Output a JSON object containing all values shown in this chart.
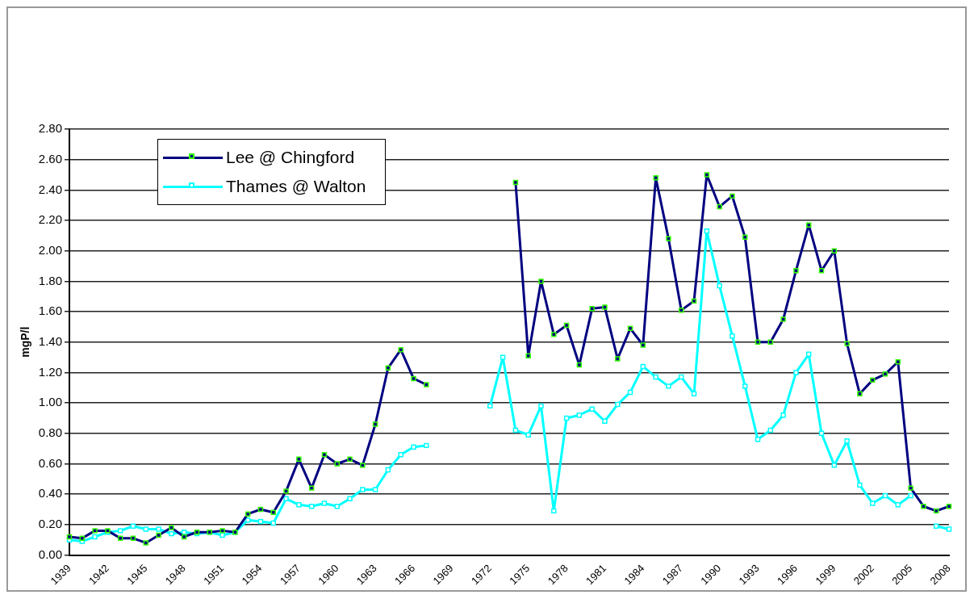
{
  "chart_data": {
    "type": "line",
    "ylabel": "mgP/l",
    "categories": [
      "1939",
      null,
      null,
      "1942",
      null,
      null,
      "1945",
      null,
      null,
      "1948",
      null,
      null,
      "1951",
      null,
      null,
      "1954",
      null,
      null,
      "1957",
      null,
      null,
      "1960",
      null,
      null,
      "1963",
      null,
      null,
      "1966",
      null,
      null,
      "1969",
      null,
      null,
      "1972",
      null,
      null,
      "1975",
      null,
      null,
      "1978",
      null,
      null,
      "1981",
      null,
      null,
      "1984",
      null,
      null,
      "1987",
      null,
      null,
      "1990",
      null,
      null,
      "1993",
      null,
      null,
      "1996",
      null,
      null,
      "1999",
      null,
      null,
      "2002",
      null,
      null,
      "2005",
      null,
      null,
      "2008"
    ],
    "series": [
      {
        "name": "Lee @ Chingford",
        "color": "#000080",
        "values": [
          0.12,
          0.11,
          0.16,
          0.16,
          0.11,
          0.11,
          0.08,
          0.13,
          0.18,
          0.12,
          0.15,
          0.15,
          0.16,
          0.15,
          0.27,
          0.3,
          0.28,
          0.42,
          0.63,
          0.44,
          0.66,
          0.6,
          0.63,
          0.59,
          0.86,
          1.23,
          1.35,
          1.16,
          1.12,
          null,
          null,
          null,
          null,
          null,
          null,
          2.45,
          1.31,
          1.8,
          1.45,
          1.51,
          1.25,
          1.62,
          1.63,
          1.29,
          1.49,
          1.38,
          2.48,
          2.08,
          1.61,
          1.67,
          2.5,
          2.29,
          2.36,
          2.09,
          1.4,
          1.4,
          1.55,
          1.87,
          2.17,
          1.87,
          2.0,
          1.39,
          1.06,
          1.15,
          1.19,
          1.27,
          0.44,
          0.32,
          0.29,
          0.32
        ]
      },
      {
        "name": "Thames @ Walton",
        "color": "#00ffff",
        "values": [
          0.1,
          0.09,
          0.12,
          0.15,
          0.16,
          0.19,
          0.17,
          0.17,
          0.14,
          0.15,
          0.14,
          0.15,
          0.13,
          0.15,
          0.23,
          0.22,
          0.21,
          0.37,
          0.33,
          0.32,
          0.34,
          0.32,
          0.37,
          0.43,
          0.43,
          0.56,
          0.66,
          0.71,
          0.72,
          null,
          null,
          null,
          null,
          0.98,
          1.3,
          0.82,
          0.79,
          0.98,
          0.29,
          0.9,
          0.92,
          0.96,
          0.88,
          0.99,
          1.07,
          1.24,
          1.17,
          1.11,
          1.17,
          1.06,
          2.13,
          1.77,
          1.44,
          1.11,
          0.76,
          0.82,
          0.92,
          1.2,
          1.32,
          0.8,
          0.59,
          0.75,
          0.46,
          0.34,
          0.39,
          0.33,
          0.39,
          null,
          0.19,
          0.17
        ]
      }
    ],
    "ylim": [
      0,
      2.8
    ],
    "yticks": [
      {
        "value": 0,
        "label": "0.00"
      },
      {
        "value": 0.2,
        "label": "0.20"
      },
      {
        "value": 0.4,
        "label": "0.40"
      },
      {
        "value": 0.6,
        "label": "0.60"
      },
      {
        "value": 0.8,
        "label": "0.80"
      },
      {
        "value": 1,
        "label": "1.00"
      },
      {
        "value": 1.2,
        "label": "1.20"
      },
      {
        "value": 1.4,
        "label": "1.40"
      },
      {
        "value": 1.6,
        "label": "1.60"
      },
      {
        "value": 1.8,
        "label": "1.80"
      },
      {
        "value": 2,
        "label": "2.00"
      },
      {
        "value": 2.2,
        "label": "2.20"
      },
      {
        "value": 2.4,
        "label": "2.40"
      },
      {
        "value": 2.6,
        "label": "2.60"
      },
      {
        "value": 2.8,
        "label": "2.80"
      }
    ],
    "grid": "y",
    "legend": "top left",
    "marker": "square",
    "line_style": "solid"
  }
}
